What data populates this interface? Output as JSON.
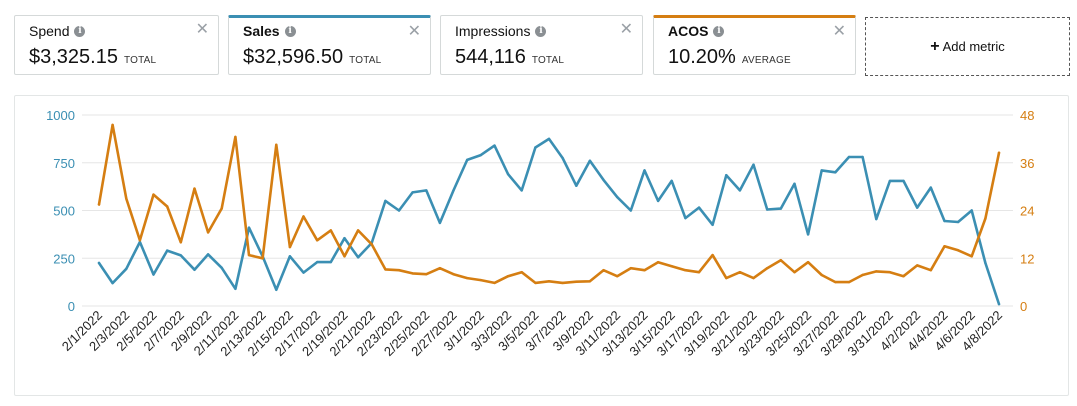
{
  "metrics": [
    {
      "name": "Spend",
      "value": "$3,325.15",
      "suffix": "TOTAL"
    },
    {
      "name": "Sales",
      "value": "$32,596.50",
      "suffix": "TOTAL"
    },
    {
      "name": "Impressions",
      "value": "544,116",
      "suffix": "TOTAL"
    },
    {
      "name": "ACOS",
      "value": "10.20%",
      "suffix": "AVERAGE"
    }
  ],
  "add_metric_label": "Add metric",
  "colors": {
    "sales": "#3b8fb3",
    "acos": "#d57e12"
  },
  "chart_data": {
    "type": "line",
    "x": [
      "2/1/2022",
      "2/2/2022",
      "2/3/2022",
      "2/4/2022",
      "2/5/2022",
      "2/6/2022",
      "2/7/2022",
      "2/8/2022",
      "2/9/2022",
      "2/10/2022",
      "2/11/2022",
      "2/12/2022",
      "2/13/2022",
      "2/14/2022",
      "2/15/2022",
      "2/16/2022",
      "2/17/2022",
      "2/18/2022",
      "2/19/2022",
      "2/20/2022",
      "2/21/2022",
      "2/22/2022",
      "2/23/2022",
      "2/24/2022",
      "2/25/2022",
      "2/26/2022",
      "2/27/2022",
      "2/28/2022",
      "3/1/2022",
      "3/2/2022",
      "3/3/2022",
      "3/4/2022",
      "3/5/2022",
      "3/6/2022",
      "3/7/2022",
      "3/8/2022",
      "3/9/2022",
      "3/10/2022",
      "3/11/2022",
      "3/12/2022",
      "3/13/2022",
      "3/14/2022",
      "3/15/2022",
      "3/16/2022",
      "3/17/2022",
      "3/18/2022",
      "3/19/2022",
      "3/20/2022",
      "3/21/2022",
      "3/22/2022",
      "3/23/2022",
      "3/24/2022",
      "3/25/2022",
      "3/26/2022",
      "3/27/2022",
      "3/28/2022",
      "3/29/2022",
      "3/30/2022",
      "3/31/2022",
      "4/1/2022",
      "4/2/2022",
      "4/3/2022",
      "4/4/2022",
      "4/5/2022",
      "4/6/2022",
      "4/7/2022",
      "4/8/2022"
    ],
    "x_tick_labels": [
      "2/1/2022",
      "2/3/2022",
      "2/5/2022",
      "2/7/2022",
      "2/9/2022",
      "2/11/2022",
      "2/13/2022",
      "2/15/2022",
      "2/17/2022",
      "2/19/2022",
      "2/21/2022",
      "2/23/2022",
      "2/25/2022",
      "2/27/2022",
      "3/1/2022",
      "3/3/2022",
      "3/5/2022",
      "3/7/2022",
      "3/9/2022",
      "3/11/2022",
      "3/13/2022",
      "3/15/2022",
      "3/17/2022",
      "3/19/2022",
      "3/21/2022",
      "3/23/2022",
      "3/25/2022",
      "3/27/2022",
      "3/29/2022",
      "3/31/2022",
      "4/2/2022",
      "4/4/2022",
      "4/6/2022",
      "4/8/2022"
    ],
    "series": [
      {
        "name": "Sales",
        "axis": "left",
        "values": [
          225,
          120,
          195,
          335,
          165,
          290,
          265,
          190,
          270,
          200,
          90,
          410,
          260,
          85,
          260,
          175,
          230,
          230,
          355,
          255,
          330,
          550,
          500,
          595,
          605,
          435,
          605,
          765,
          790,
          840,
          690,
          605,
          830,
          875,
          775,
          630,
          760,
          660,
          570,
          500,
          710,
          550,
          655,
          460,
          515,
          425,
          685,
          605,
          740,
          505,
          510,
          640,
          375,
          710,
          700,
          780,
          780,
          455,
          655,
          655,
          515,
          620,
          445,
          440,
          500,
          225,
          10
        ]
      },
      {
        "name": "ACOS",
        "axis": "right",
        "values": [
          25.5,
          45.5,
          27.0,
          16.5,
          28.0,
          25.0,
          16.0,
          29.5,
          18.5,
          24.5,
          42.5,
          12.8,
          12.0,
          40.5,
          14.8,
          22.5,
          16.5,
          19.0,
          12.5,
          19.0,
          15.5,
          9.2,
          9.0,
          8.2,
          8.0,
          9.5,
          8.0,
          7.0,
          6.5,
          5.8,
          7.5,
          8.5,
          5.8,
          6.2,
          5.8,
          6.1,
          6.2,
          9.0,
          7.5,
          9.5,
          9.0,
          11.0,
          10.0,
          9.0,
          8.5,
          12.8,
          7.0,
          8.5,
          7.0,
          9.5,
          11.5,
          8.5,
          11.0,
          7.8,
          6.0,
          6.0,
          7.8,
          8.7,
          8.5,
          7.5,
          10.2,
          9.0,
          15.0,
          14.0,
          12.5,
          22.0,
          38.5
        ]
      }
    ],
    "y_left": {
      "ylim": [
        0,
        1000
      ],
      "ticks": [
        "0",
        "250",
        "500",
        "750",
        "1000"
      ]
    },
    "y_right": {
      "ylim": [
        0,
        48
      ],
      "ticks": [
        "0",
        "12",
        "24",
        "36",
        "48"
      ]
    },
    "grid": true,
    "legend": "none"
  }
}
